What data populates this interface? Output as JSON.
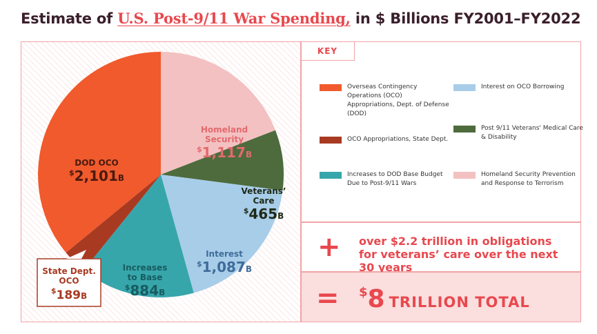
{
  "title": {
    "prefix": "Estimate of ",
    "highlight": "U.S. Post-9/11 War Spending,",
    "suffix": " in $ Billions FY2001–FY2022"
  },
  "key": {
    "label": "KEY",
    "items": [
      {
        "label": "Overseas Contingency Operations (OCO) Appropriations, Dept. of Defense (DOD)",
        "color": "#f05a2c"
      },
      {
        "label": "OCO Appropriations, State Dept.",
        "color": "#a83a22"
      },
      {
        "label": "Increases to DOD Base Budget Due to Post-9/11 Wars",
        "color": "#37a6ab"
      },
      {
        "label": "Interest on OCO Borrowing",
        "color": "#a8cde9"
      },
      {
        "label": "Post 9/11 Veterans' Medical Care & Disability",
        "color": "#4d6b3c"
      },
      {
        "label": "Homeland Security Prevention and Response to Terrorism",
        "color": "#f3c1c1"
      }
    ]
  },
  "plus": {
    "symbol": "+",
    "text": "over $2.2 trillion in obligations for veterans’ care over the next 30 years"
  },
  "total": {
    "symbol": "=",
    "currency": "$",
    "amount": "8",
    "label": "TRILLION TOTAL"
  },
  "chart_data": {
    "type": "pie",
    "title": "Estimate of U.S. Post-9/11 War Spending, in $ Billions FY2001–FY2022",
    "unit": "B",
    "slices": [
      {
        "name": "Homeland Security",
        "lines": [
          "Homeland",
          "Security"
        ],
        "value": 1117,
        "display": "1,117",
        "color": "#f3c1c1",
        "text_color": "#e36a6e"
      },
      {
        "name": "Veterans' Care",
        "lines": [
          "Veterans’",
          "Care"
        ],
        "value": 465,
        "display": "465",
        "color": "#4d6b3c",
        "text_color": "#1f2a16"
      },
      {
        "name": "Interest",
        "lines": [
          "Interest"
        ],
        "value": 1087,
        "display": "1,087",
        "color": "#a8cde9",
        "text_color": "#3f6d99"
      },
      {
        "name": "Increases to Base",
        "lines": [
          "Increases",
          "to Base"
        ],
        "value": 884,
        "display": "884",
        "color": "#37a6ab",
        "text_color": "#175c60"
      },
      {
        "name": "State Dept. OCO",
        "lines": [
          "State Dept.",
          "OCO"
        ],
        "value": 189,
        "display": "189",
        "color": "#a83a22",
        "text_color": "#a83a22"
      },
      {
        "name": "DOD OCO",
        "lines": [
          "DOD OCO"
        ],
        "value": 2101,
        "display": "2,101",
        "color": "#f05a2c",
        "text_color": "#4a1a10"
      }
    ]
  }
}
